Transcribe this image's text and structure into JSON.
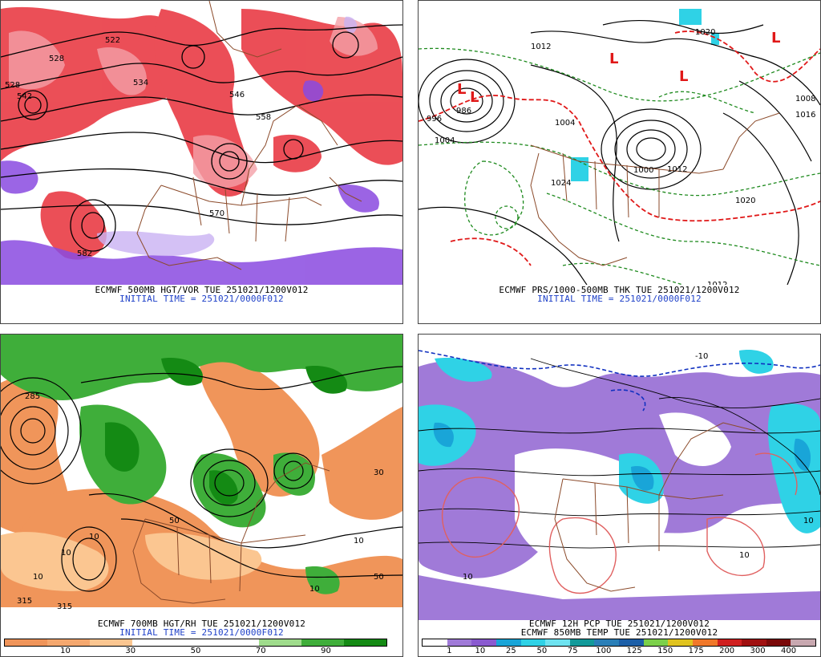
{
  "panels": {
    "p500": {
      "caption": "ECMWF 500MB HGT/VOR TUE 251021/1200V012",
      "initial": "INITIAL TIME = 251021/0000F012",
      "labels": [
        "522",
        "528",
        "534",
        "546",
        "558",
        "570",
        "582",
        "542",
        "528"
      ]
    },
    "psfc": {
      "caption": "ECMWF PRS/1000-500MB THK TUE 251021/1200V012",
      "initial": "INITIAL TIME = 251021/0000F012",
      "labels": [
        "1012",
        "986",
        "996",
        "1004",
        "1000",
        "1012",
        "1020",
        "1020",
        "1016",
        "1008",
        "1012",
        "1004",
        "1024"
      ],
      "low_symbol": "L"
    },
    "p700": {
      "caption": "ECMWF 700MB HGT/RH TUE 251021/1200V012",
      "initial": "INITIAL TIME = 251021/0000F012",
      "labels": [
        "285",
        "10",
        "10",
        "10",
        "315",
        "315",
        "50",
        "50",
        "10",
        "10",
        "30"
      ]
    },
    "ppcp": {
      "caption": "ECMWF 12H PCP TUE 251021/1200V012",
      "caption2": "ECMWF 850MB TEMP TUE 251021/1200V012",
      "labels": [
        "10",
        "10",
        "-10",
        "10"
      ]
    }
  },
  "rh_colorbar": {
    "colors": [
      "#f0955a",
      "#f5a86f",
      "#fbc691",
      "#ffffff",
      "#ffffff",
      "#ffffff",
      "#9fdc8c",
      "#3fae3a",
      "#148a14"
    ],
    "ticks": [
      "10",
      "30",
      "50",
      "70",
      "90"
    ]
  },
  "pcp_colorbar": {
    "colors": [
      "#ffffff",
      "#a07ad8",
      "#8a5ad0",
      "#19a5d8",
      "#2fd2e6",
      "#6ee3f0",
      "#129a9a",
      "#2a7fb8",
      "#1c5fa8",
      "#7bd04a",
      "#e0c31e",
      "#f0782a",
      "#d02020",
      "#a01010",
      "#7a0808",
      "#c8a8b0"
    ],
    "ticks": [
      "1",
      "10",
      "25",
      "50",
      "75",
      "100",
      "125",
      "150",
      "175",
      "200",
      "300",
      "400"
    ]
  },
  "colors": {
    "vorticity_red": "#e8303a",
    "vorticity_purple": "#8a4ae0",
    "height_contour": "#000000",
    "border_brown": "#8b4a2a",
    "thickness_green": "#1e8a1e",
    "freezing_red": "#e01818",
    "caption_blue": "#1e40c8"
  }
}
